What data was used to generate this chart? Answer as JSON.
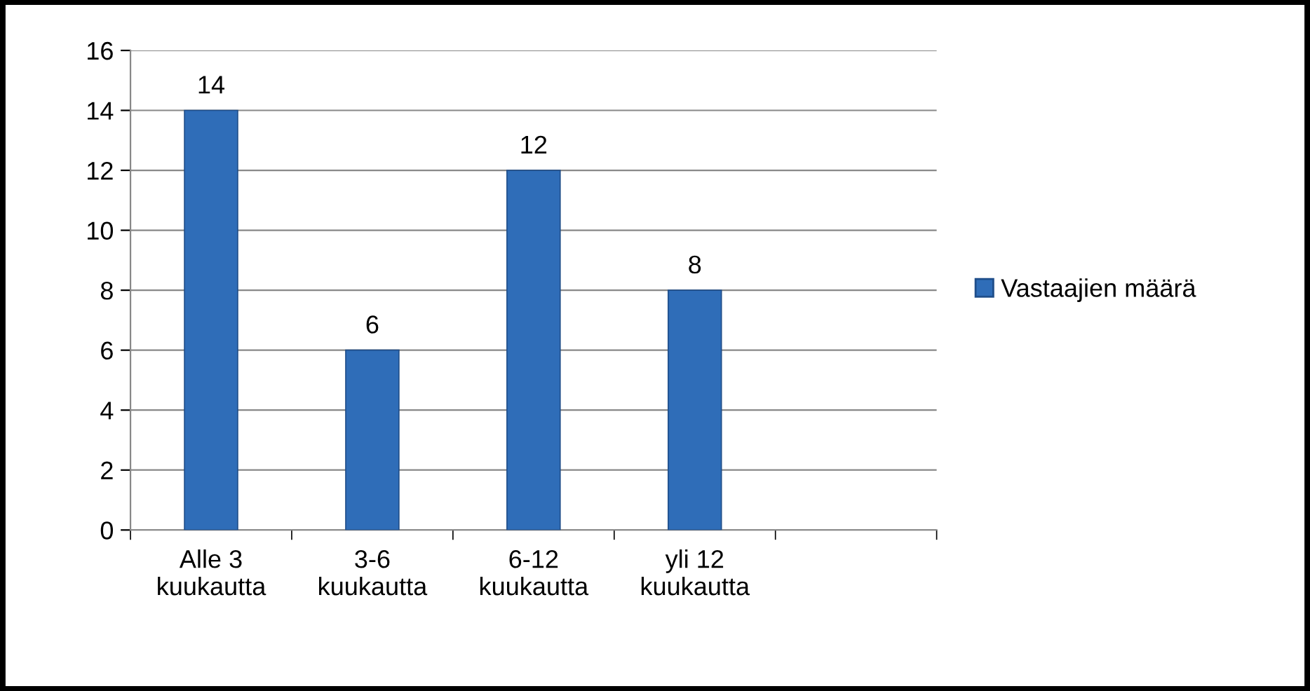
{
  "chart_data": {
    "type": "bar",
    "categories": [
      "Alle 3\nkuukautta",
      "3-6\nkuukautta",
      "6-12\nkuukautta",
      "yli 12\nkuukautta",
      null
    ],
    "series": [
      {
        "name": "Vastaajien määrä",
        "color": "#2f6db8",
        "values": [
          14,
          6,
          12,
          8,
          null
        ]
      }
    ],
    "ylim": [
      0,
      16
    ],
    "yticks": [
      0,
      2,
      4,
      6,
      8,
      10,
      12,
      14,
      16
    ],
    "grid": "y",
    "legend": "right",
    "data_labels": true
  }
}
